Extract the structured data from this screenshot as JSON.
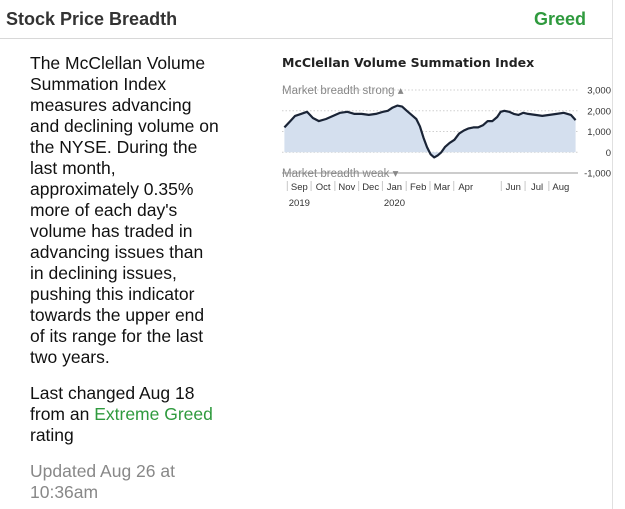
{
  "header": {
    "title": "Stock Price Breadth",
    "rating": "Greed",
    "rating_color": "#2f9a3e"
  },
  "description": "The McClellan Volume Summation Index measures advancing and declining volume on the NYSE. During the last month, approximately 0.35% more of each day's volume has traded in advancing issues than in declining issues, pushing this indicator towards the upper end of its range for the last two years.",
  "changed": {
    "prefix": "Last changed Aug 18 from an ",
    "rating": "Extreme Greed",
    "suffix": " rating"
  },
  "updated": "Updated Aug 26 at 10:36am",
  "chart_data": {
    "type": "area",
    "title": "McClellan Volume Summation Index",
    "annotations": {
      "strong": "Market breadth strong",
      "weak": "Market breadth weak"
    },
    "ylim": [
      -1000,
      3000
    ],
    "yticks": [
      3000,
      2000,
      1000,
      0,
      -1000
    ],
    "ytick_labels": [
      "3,000",
      "2,000",
      "1,000",
      "0",
      "-1,000"
    ],
    "x_months": [
      "Sep",
      "Oct",
      "Nov",
      "Dec",
      "Jan",
      "Feb",
      "Mar",
      "Apr",
      "Jun",
      "Jul",
      "Aug"
    ],
    "x_years": [
      {
        "label": "2019",
        "at": "Sep"
      },
      {
        "label": "2020",
        "at": "Jan"
      }
    ],
    "x_month_index": [
      0,
      1,
      2,
      3,
      4,
      5,
      6,
      7,
      9,
      10,
      11
    ],
    "x_range": [
      -0.35,
      12.1
    ],
    "series": [
      {
        "color": "#1a2436",
        "fill": "#d4dfee",
        "x": [
          -0.25,
          0,
          0.2,
          0.45,
          0.7,
          0.95,
          1.2,
          1.5,
          1.8,
          2.1,
          2.4,
          2.7,
          3.0,
          3.3,
          3.6,
          3.9,
          4.1,
          4.3,
          4.5,
          4.7,
          4.9,
          5.1,
          5.3,
          5.45,
          5.6,
          5.75,
          5.9,
          6.05,
          6.2,
          6.35,
          6.5,
          6.7,
          6.9,
          7.1,
          7.3,
          7.5,
          7.7,
          7.9,
          8.1,
          8.3,
          8.5,
          8.7,
          8.85,
          9.0,
          9.2,
          9.4,
          9.6,
          9.8,
          10.0,
          10.3,
          10.6,
          10.9,
          11.2,
          11.5,
          11.8,
          12.0
        ],
        "y": [
          1200,
          1500,
          1750,
          1850,
          1950,
          1650,
          1500,
          1600,
          1750,
          1900,
          1950,
          1850,
          1850,
          1800,
          1850,
          1950,
          2000,
          2150,
          2250,
          2200,
          2000,
          1800,
          1600,
          1250,
          700,
          250,
          -100,
          -250,
          -150,
          0,
          250,
          450,
          600,
          900,
          1050,
          1150,
          1200,
          1200,
          1300,
          1500,
          1500,
          1700,
          1950,
          2000,
          1950,
          1850,
          1800,
          1900,
          1850,
          1800,
          1750,
          1800,
          1850,
          1900,
          1800,
          1550
        ]
      }
    ]
  }
}
